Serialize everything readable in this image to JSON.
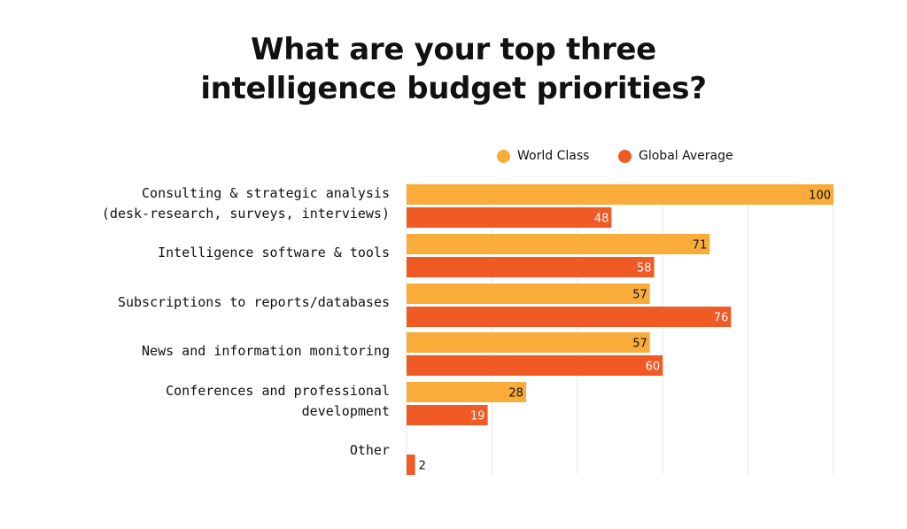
{
  "title": {
    "line1": "What are your top three",
    "line2": "intelligence budget priorities?"
  },
  "legend": [
    {
      "name": "World Class",
      "color": "#F9AC3A"
    },
    {
      "name": "Global Average",
      "color": "#F05A24"
    }
  ],
  "chart_data": {
    "type": "bar",
    "orientation": "horizontal",
    "title": "What are your top three intelligence budget priorities?",
    "categories": [
      [
        "Consulting & strategic analysis",
        "(desk-research, surveys, interviews)"
      ],
      [
        "Intelligence software & tools"
      ],
      [
        "Subscriptions to reports/databases"
      ],
      [
        "News and information monitoring"
      ],
      [
        "Conferences and professional",
        "development"
      ],
      [
        "Other"
      ]
    ],
    "series": [
      {
        "name": "World Class",
        "color": "#F9AC3A",
        "values": [
          100,
          71,
          57,
          57,
          28,
          null
        ]
      },
      {
        "name": "Global Average",
        "color": "#F05A24",
        "values": [
          48,
          58,
          76,
          60,
          19,
          2
        ]
      }
    ],
    "xlim": [
      0,
      100
    ],
    "grid": true,
    "legend_position": "top"
  }
}
